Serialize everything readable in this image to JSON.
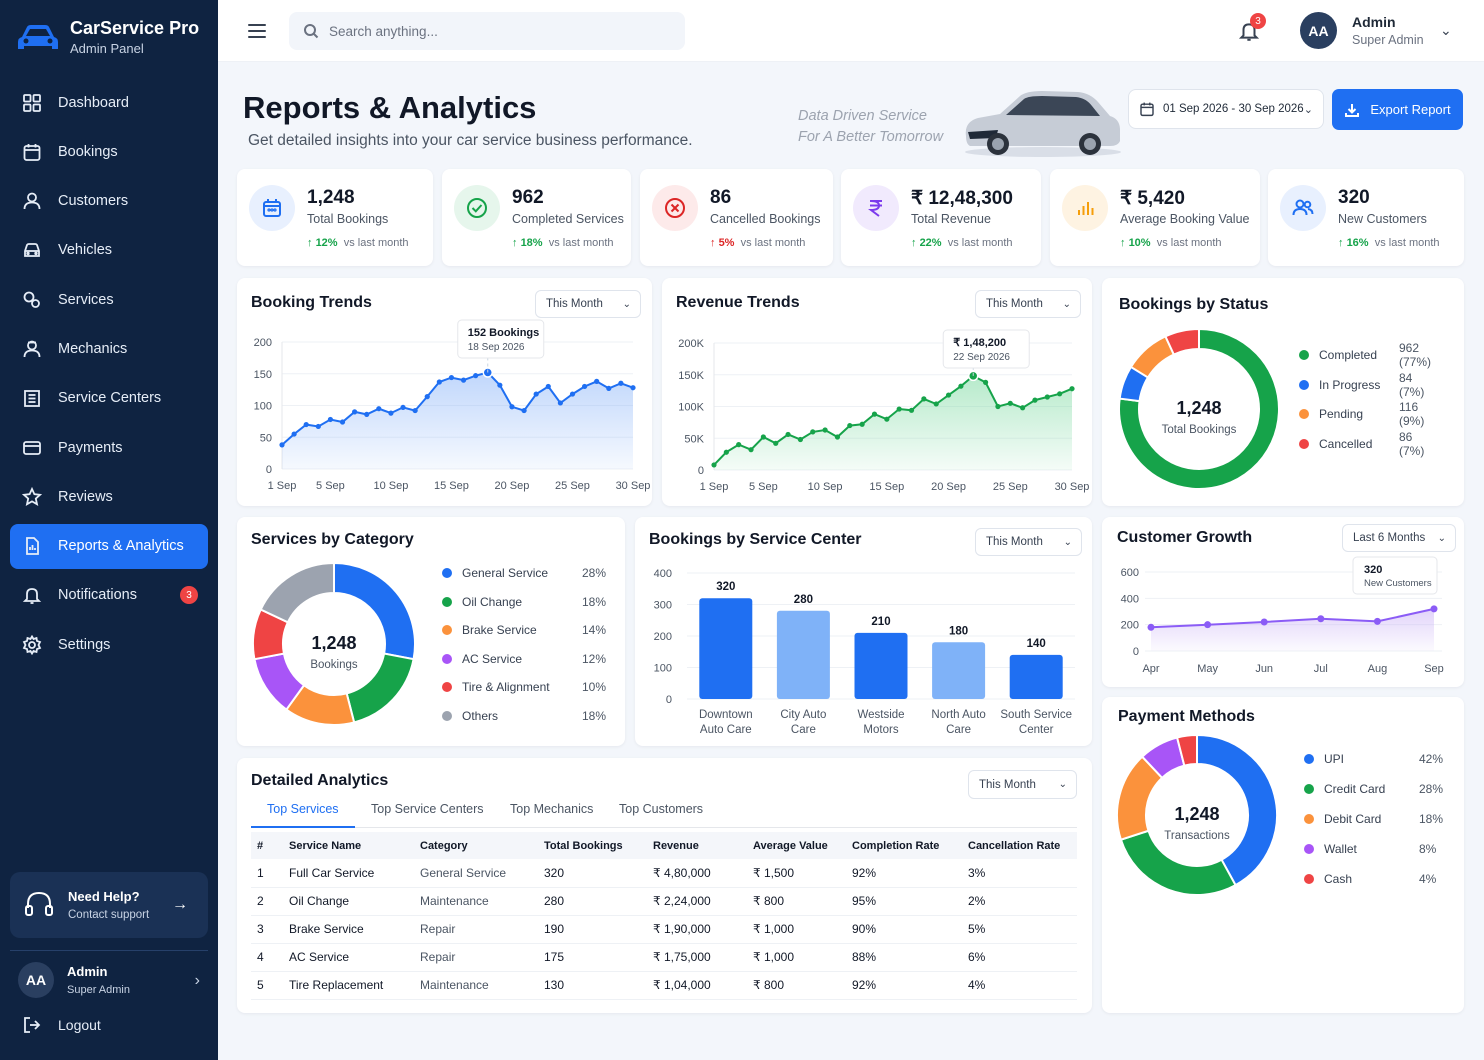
{
  "brand": {
    "title": "CarService Pro",
    "subtitle": "Admin Panel"
  },
  "nav": [
    {
      "label": "Dashboard",
      "icon": "grid-icon"
    },
    {
      "label": "Bookings",
      "icon": "calendar-icon"
    },
    {
      "label": "Customers",
      "icon": "user-icon"
    },
    {
      "label": "Vehicles",
      "icon": "car-icon"
    },
    {
      "label": "Services",
      "icon": "wrench-icon"
    },
    {
      "label": "Mechanics",
      "icon": "mechanic-icon"
    },
    {
      "label": "Service Centers",
      "icon": "building-icon"
    },
    {
      "label": "Payments",
      "icon": "card-icon"
    },
    {
      "label": "Reviews",
      "icon": "star-icon"
    },
    {
      "label": "Reports & Analytics",
      "icon": "report-icon",
      "active": true
    },
    {
      "label": "Notifications",
      "icon": "bell-icon",
      "badge": "3"
    },
    {
      "label": "Settings",
      "icon": "gear-icon"
    }
  ],
  "help": {
    "title": "Need Help?",
    "subtitle": "Contact support"
  },
  "sidebar_user": {
    "initials": "AA",
    "name": "Admin",
    "role": "Super Admin"
  },
  "logout_label": "Logout",
  "topbar": {
    "search_placeholder": "Search anything...",
    "notification_count": "3",
    "user_initials": "AA",
    "user_name": "Admin",
    "user_role": "Super Admin"
  },
  "header": {
    "title": "Reports & Analytics",
    "subtitle": "Get detailed insights into your car service business performance.",
    "tagline_1": "Data Driven Service",
    "tagline_2": "For A Better Tomorrow",
    "date_range": "01 Sep 2026 - 30 Sep 2026",
    "export_label": "Export Report"
  },
  "colors": {
    "accent": "#1f6ff2",
    "sidebar": "#0f2341",
    "success": "#16a34a",
    "danger": "#dc2626"
  },
  "stats": [
    {
      "value": "1,248",
      "label": "Total Bookings",
      "change": "12%",
      "dir": "up",
      "suffix": "vs last month",
      "icon": "calendar-icon",
      "color": "#1f6ff2",
      "bg": "#e8f0fe"
    },
    {
      "value": "962",
      "label": "Completed Services",
      "change": "18%",
      "dir": "up",
      "suffix": "vs last month",
      "icon": "check-circle-icon",
      "color": "#16a34a",
      "bg": "#e6f6ec"
    },
    {
      "value": "86",
      "label": "Cancelled Bookings",
      "change": "5%",
      "dir": "up-bad",
      "suffix": "vs last month",
      "icon": "cancel-circle-icon",
      "color": "#dc2626",
      "bg": "#fdeaea"
    },
    {
      "value": "₹ 12,48,300",
      "label": "Total Revenue",
      "change": "22%",
      "dir": "up",
      "suffix": "vs last month",
      "icon": "rupee-icon",
      "color": "#7c3aed",
      "bg": "#f1eafd"
    },
    {
      "value": "₹ 5,420",
      "label": "Average Booking Value",
      "change": "10%",
      "dir": "up",
      "suffix": "vs last month",
      "icon": "bar-chart-icon",
      "color": "#f59e0b",
      "bg": "#fef3e2"
    },
    {
      "value": "320",
      "label": "New Customers",
      "change": "16%",
      "dir": "up",
      "suffix": "vs last month",
      "icon": "users-icon",
      "color": "#1f6ff2",
      "bg": "#e8f0fe"
    }
  ],
  "booking_trends": {
    "title": "Booking Trends",
    "filter": "This Month",
    "tooltip_value": "152 Bookings",
    "tooltip_date": "18 Sep 2026",
    "chart_data": {
      "type": "area",
      "x_ticks": [
        "1 Sep",
        "5 Sep",
        "10 Sep",
        "15 Sep",
        "20 Sep",
        "25 Sep",
        "30 Sep"
      ],
      "y_ticks": [
        "200",
        "150",
        "100",
        "50",
        "0"
      ],
      "ylim": [
        0,
        200
      ],
      "x": [
        1,
        2,
        3,
        4,
        5,
        6,
        7,
        8,
        9,
        10,
        11,
        12,
        13,
        14,
        15,
        16,
        17,
        18,
        19,
        20,
        21,
        22,
        23,
        24,
        25,
        26,
        27,
        28,
        29,
        30
      ],
      "values": [
        38,
        55,
        70,
        67,
        78,
        74,
        90,
        86,
        95,
        88,
        97,
        92,
        114,
        137,
        144,
        140,
        147,
        152,
        132,
        98,
        92,
        118,
        130,
        104,
        118,
        130,
        138,
        127,
        135,
        128
      ]
    }
  },
  "revenue_trends": {
    "title": "Revenue Trends",
    "filter": "This Month",
    "tooltip_value": "₹ 1,48,200",
    "tooltip_date": "22 Sep 2026",
    "chart_data": {
      "type": "area",
      "x_ticks": [
        "1 Sep",
        "5 Sep",
        "10 Sep",
        "15 Sep",
        "20 Sep",
        "25 Sep",
        "30 Sep"
      ],
      "y_ticks": [
        "200K",
        "150K",
        "100K",
        "50K",
        "0"
      ],
      "ylim": [
        0,
        200000
      ],
      "x": [
        1,
        2,
        3,
        4,
        5,
        6,
        7,
        8,
        9,
        10,
        11,
        12,
        13,
        14,
        15,
        16,
        17,
        18,
        19,
        20,
        21,
        22,
        23,
        24,
        25,
        26,
        27,
        28,
        29,
        30
      ],
      "values": [
        8000,
        28000,
        40000,
        32000,
        52000,
        42000,
        56000,
        48000,
        60000,
        63000,
        52000,
        70000,
        72000,
        88000,
        80000,
        96000,
        94000,
        112000,
        104000,
        118000,
        132000,
        148200,
        138000,
        100000,
        105000,
        98000,
        110000,
        115000,
        120000,
        128000
      ]
    }
  },
  "bookings_by_status": {
    "title": "Bookings by Status",
    "center_value": "1,248",
    "center_label": "Total Bookings",
    "chart_data": {
      "type": "pie",
      "labels": [
        "Completed",
        "In Progress",
        "Pending",
        "Cancelled"
      ],
      "display": [
        "962 (77%)",
        "84 (7%)",
        "116 (9%)",
        "86 (7%)"
      ],
      "values": [
        962,
        84,
        116,
        86
      ],
      "colors": [
        "#16a34a",
        "#1f6ff2",
        "#fb923c",
        "#ef4444"
      ]
    }
  },
  "services_by_category": {
    "title": "Services by Category",
    "center_value": "1,248",
    "center_label": "Bookings",
    "chart_data": {
      "type": "pie",
      "labels": [
        "General Service",
        "Oil Change",
        "Brake Service",
        "AC Service",
        "Tire & Alignment",
        "Others"
      ],
      "display": [
        "28%",
        "18%",
        "14%",
        "12%",
        "10%",
        "18%"
      ],
      "values": [
        28,
        18,
        14,
        12,
        10,
        18
      ],
      "colors": [
        "#1f6ff2",
        "#16a34a",
        "#fb923c",
        "#a855f7",
        "#ef4444",
        "#9ca3af"
      ]
    }
  },
  "bookings_by_center": {
    "title": "Bookings by Service Center",
    "filter": "This Month",
    "chart_data": {
      "type": "bar",
      "categories": [
        [
          "Downtown",
          "Auto Care"
        ],
        [
          "City Auto",
          "Care"
        ],
        [
          "Westside",
          "Motors"
        ],
        [
          "North Auto",
          "Care"
        ],
        [
          "South Service",
          "Center"
        ]
      ],
      "values": [
        320,
        280,
        210,
        180,
        140
      ],
      "labels": [
        "320",
        "280",
        "210",
        "180",
        "140"
      ],
      "colors": [
        "#1f6ff2",
        "#7fb2f8",
        "#1f6ff2",
        "#7fb2f8",
        "#1f6ff2"
      ],
      "y_ticks": [
        "400",
        "300",
        "200",
        "100",
        "0"
      ],
      "ylim": [
        0,
        400
      ]
    }
  },
  "customer_growth": {
    "title": "Customer Growth",
    "filter": "Last 6 Months",
    "tooltip_value": "320",
    "tooltip_label": "New Customers",
    "chart_data": {
      "type": "line",
      "categories": [
        "Apr",
        "May",
        "Jun",
        "Jul",
        "Aug",
        "Sep"
      ],
      "values": [
        180,
        200,
        220,
        245,
        225,
        320
      ],
      "y_ticks": [
        "600",
        "400",
        "200",
        "0"
      ],
      "ylim": [
        0,
        600
      ]
    }
  },
  "payment_methods": {
    "title": "Payment Methods",
    "center_value": "1,248",
    "center_label": "Transactions",
    "chart_data": {
      "type": "pie",
      "labels": [
        "UPI",
        "Credit Card",
        "Debit Card",
        "Wallet",
        "Cash"
      ],
      "display": [
        "42%",
        "28%",
        "18%",
        "8%",
        "4%"
      ],
      "values": [
        42,
        28,
        18,
        8,
        4
      ],
      "colors": [
        "#1f6ff2",
        "#16a34a",
        "#fb923c",
        "#a855f7",
        "#ef4444"
      ]
    }
  },
  "detailed": {
    "title": "Detailed Analytics",
    "filter": "This Month",
    "tabs": [
      "Top Services",
      "Top Service Centers",
      "Top Mechanics",
      "Top Customers"
    ],
    "columns": [
      "#",
      "Service Name",
      "Category",
      "Total Bookings",
      "Revenue",
      "Average Value",
      "Completion Rate",
      "Cancellation Rate"
    ],
    "rows": [
      [
        "1",
        "Full Car Service",
        "General Service",
        "320",
        "₹ 4,80,000",
        "₹ 1,500",
        "92%",
        "3%"
      ],
      [
        "2",
        "Oil Change",
        "Maintenance",
        "280",
        "₹ 2,24,000",
        "₹ 800",
        "95%",
        "2%"
      ],
      [
        "3",
        "Brake Service",
        "Repair",
        "190",
        "₹ 1,90,000",
        "₹ 1,000",
        "90%",
        "5%"
      ],
      [
        "4",
        "AC Service",
        "Repair",
        "175",
        "₹ 1,75,000",
        "₹ 1,000",
        "88%",
        "6%"
      ],
      [
        "5",
        "Tire Replacement",
        "Maintenance",
        "130",
        "₹ 1,04,000",
        "₹ 800",
        "92%",
        "4%"
      ]
    ]
  }
}
